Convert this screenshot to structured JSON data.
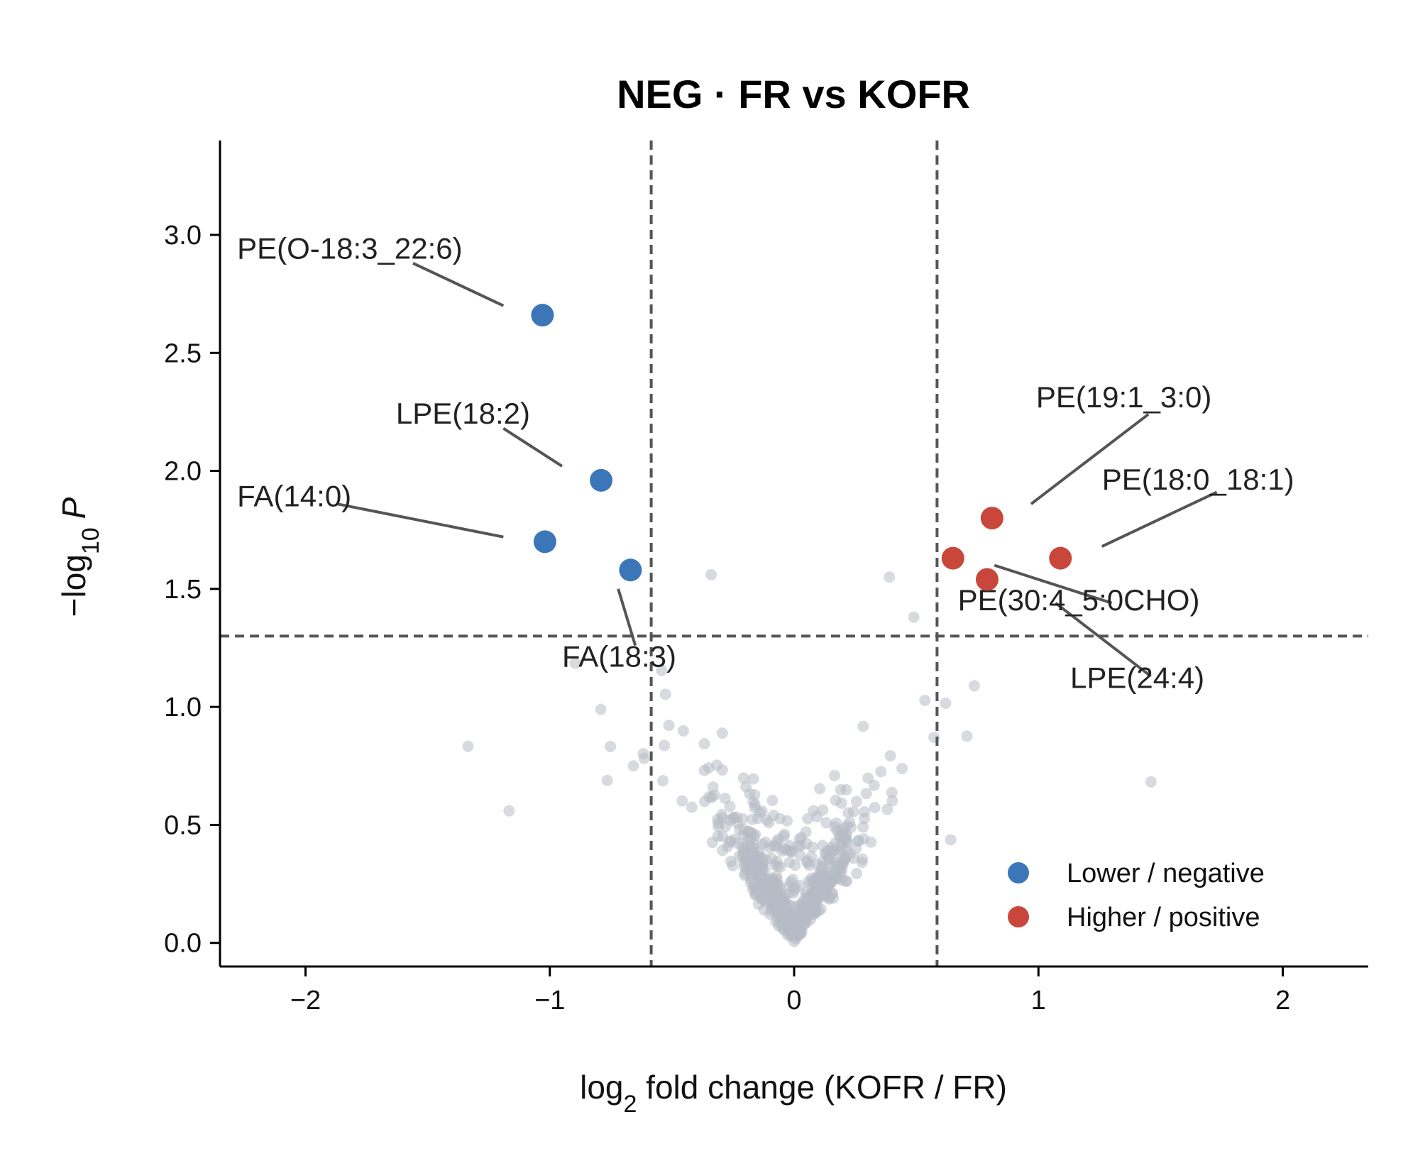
{
  "chart_data": {
    "type": "scatter",
    "title": "NEG · FR vs KOFR",
    "xlabel": {
      "prefix": "log",
      "sub": "2",
      "rest": " fold change (KOFR / FR)"
    },
    "ylabel": {
      "prefix": "−log",
      "sub": "10",
      "italic": "P"
    },
    "xlim": [
      -2.35,
      2.35
    ],
    "ylim": [
      -0.1,
      3.4
    ],
    "x_ticks": [
      -2,
      -1,
      0,
      1,
      2
    ],
    "x_tick_labels": [
      "−2",
      "−1",
      "0",
      "1",
      "2"
    ],
    "y_ticks": [
      0.0,
      0.5,
      1.0,
      1.5,
      2.0,
      2.5,
      3.0
    ],
    "y_tick_labels": [
      "0.0",
      "0.5",
      "1.0",
      "1.5",
      "2.0",
      "2.5",
      "3.0"
    ],
    "thresholds": {
      "fc_low": -0.585,
      "fc_high": 0.585,
      "p": 1.3
    },
    "colors": {
      "negative": "#3a76b8",
      "positive": "#c8473a",
      "ns": "#b7bbc4",
      "threshold": "#555555",
      "leader": "#555555"
    },
    "legend": {
      "position": "lower-right",
      "entries": [
        {
          "label": "Lower / negative",
          "color": "#3a76b8"
        },
        {
          "label": "Higher / positive",
          "color": "#c8473a"
        }
      ]
    },
    "series": [
      {
        "name": "Lower / negative",
        "points": [
          {
            "x": -1.03,
            "y": 2.66
          },
          {
            "x": -0.79,
            "y": 1.96
          },
          {
            "x": -1.02,
            "y": 1.7
          },
          {
            "x": -0.67,
            "y": 1.58
          }
        ]
      },
      {
        "name": "Higher / positive",
        "points": [
          {
            "x": 0.81,
            "y": 1.8
          },
          {
            "x": 0.65,
            "y": 1.63
          },
          {
            "x": 1.09,
            "y": 1.63
          },
          {
            "x": 0.79,
            "y": 1.54
          }
        ]
      }
    ],
    "annotations": [
      {
        "label": "PE(O-18:3_22:6)",
        "point": [
          -1.03,
          2.66
        ],
        "text_pos": [
          -2.28,
          2.9
        ]
      },
      {
        "label": "LPE(18:2)",
        "point": [
          -0.79,
          1.96
        ],
        "text_pos": [
          -1.63,
          2.2
        ]
      },
      {
        "label": "FA(14:0)",
        "point": [
          -1.02,
          1.7
        ],
        "text_pos": [
          -2.28,
          1.85
        ]
      },
      {
        "label": "FA(18:3)",
        "point": [
          -0.67,
          1.58
        ],
        "text_pos": [
          -0.95,
          1.17
        ]
      },
      {
        "label": "PE(19:1_3:0)",
        "point": [
          0.81,
          1.8
        ],
        "text_pos": [
          0.99,
          2.27
        ]
      },
      {
        "label": "PE(18:0_18:1)",
        "point": [
          1.09,
          1.63
        ],
        "text_pos": [
          1.26,
          1.92
        ]
      },
      {
        "label": "PE(30:4_5:0CHO)",
        "point": [
          0.79,
          1.54
        ],
        "text_pos": [
          0.67,
          1.41
        ]
      },
      {
        "label": "LPE(24:4)",
        "point": [
          0.79,
          1.54
        ],
        "text_pos": [
          1.13,
          1.08
        ]
      }
    ]
  }
}
